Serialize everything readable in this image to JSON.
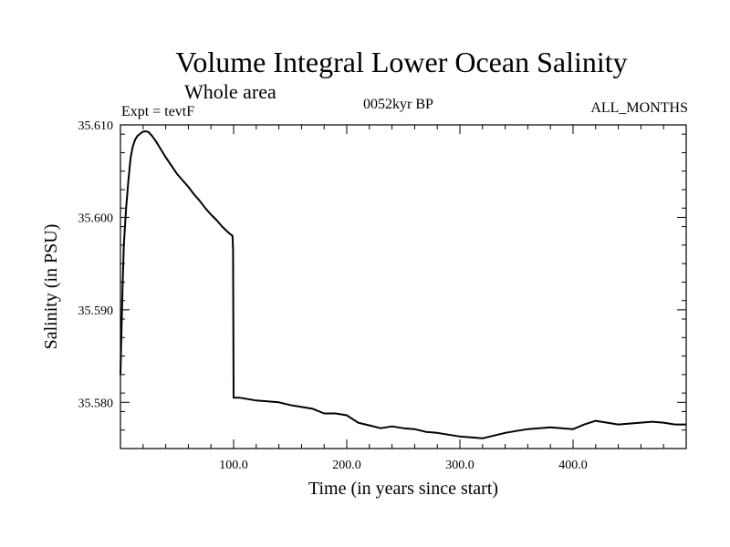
{
  "header": {
    "title": "Volume Integral Lower Ocean Salinity",
    "subtitle": "Whole area",
    "experiment": "Expt = tevtF",
    "period": "0052kyr BP",
    "months": "ALL_MONTHS"
  },
  "chart_data": {
    "type": "line",
    "xlabel": "Time (in years since start)",
    "ylabel": "Salinity (in PSU)",
    "xlim": [
      0,
      500
    ],
    "ylim": [
      35.575,
      35.61
    ],
    "x_ticks": [
      100,
      200,
      300,
      400
    ],
    "x_tick_labels": [
      "100.0",
      "200.0",
      "300.0",
      "400.0"
    ],
    "y_ticks": [
      35.58,
      35.59,
      35.6,
      35.61
    ],
    "y_tick_labels": [
      "35.580",
      "35.590",
      "35.600",
      "35.610"
    ],
    "grid": false,
    "series": [
      {
        "color": "#000000",
        "x": [
          0,
          1,
          2,
          3,
          5,
          7,
          9,
          11,
          13,
          15,
          17,
          19,
          21,
          23,
          25,
          28,
          31,
          35,
          40,
          45,
          50,
          55,
          60,
          65,
          70,
          75,
          80,
          85,
          90,
          95,
          99,
          99.5,
          100,
          101,
          105,
          110,
          120,
          130,
          140,
          150,
          160,
          170,
          180,
          190,
          200,
          210,
          220,
          230,
          240,
          250,
          260,
          270,
          280,
          290,
          300,
          310,
          320,
          330,
          340,
          350,
          360,
          370,
          380,
          390,
          400,
          410,
          420,
          430,
          440,
          450,
          460,
          470,
          480,
          490,
          500
        ],
        "y": [
          35.583,
          35.588,
          35.593,
          35.597,
          35.601,
          35.604,
          35.6065,
          35.6077,
          35.6084,
          35.6088,
          35.609,
          35.6092,
          35.6093,
          35.6093,
          35.6092,
          35.6088,
          35.6083,
          35.6075,
          35.6065,
          35.6056,
          35.6047,
          35.604,
          35.6033,
          35.6025,
          35.6018,
          35.601,
          35.6003,
          35.5997,
          35.599,
          35.5984,
          35.598,
          35.5965,
          35.5805,
          35.5805,
          35.5805,
          35.5804,
          35.5802,
          35.5801,
          35.58,
          35.5797,
          35.5795,
          35.5793,
          35.5788,
          35.5788,
          35.5786,
          35.5778,
          35.5775,
          35.5772,
          35.5774,
          35.5772,
          35.5771,
          35.5768,
          35.5767,
          35.5765,
          35.5763,
          35.5762,
          35.5761,
          35.5764,
          35.5767,
          35.5769,
          35.5771,
          35.5772,
          35.5773,
          35.5772,
          35.5771,
          35.5776,
          35.578,
          35.5778,
          35.5776,
          35.5777,
          35.5778,
          35.5779,
          35.5778,
          35.5776,
          35.5776
        ]
      }
    ]
  }
}
